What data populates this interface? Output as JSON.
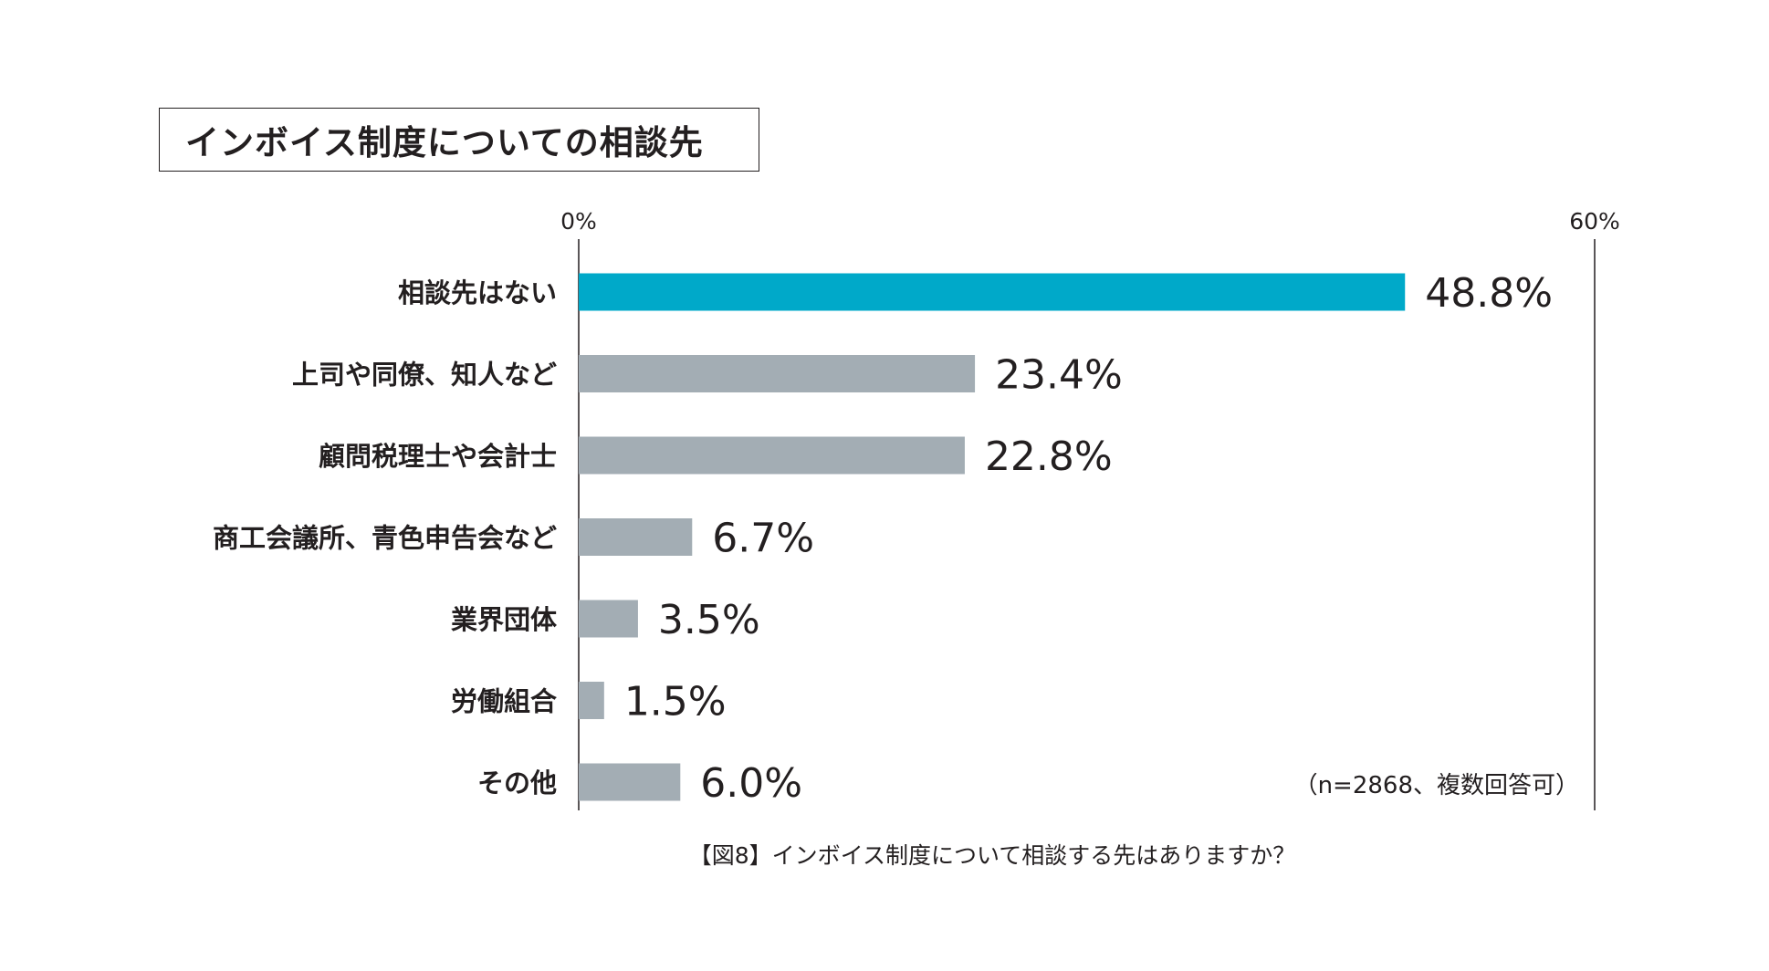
{
  "chart_data": {
    "type": "bar",
    "orientation": "horizontal",
    "title": "インボイス制度についての相談先",
    "categories": [
      "相談先はない",
      "上司や同僚、知人など",
      "顧問税理士や会計士",
      "商工会議所、青色申告会など",
      "業界団体",
      "労働組合",
      "その他"
    ],
    "values": [
      48.8,
      23.4,
      22.8,
      6.7,
      3.5,
      1.5,
      6.0
    ],
    "value_labels": [
      "48.8%",
      "23.4%",
      "22.8%",
      "6.7%",
      "3.5%",
      "1.5%",
      "6.0%"
    ],
    "xlim": [
      0,
      60
    ],
    "x_tick_labels": [
      "0%",
      "60%"
    ],
    "highlight_index": 0,
    "colors": {
      "highlight": "#00a9c9",
      "default": "#a3adb4",
      "axis": "#231f20"
    },
    "note": "（n=2868、複数回答可）",
    "caption": "【図8】インボイス制度について相談する先はありますか？"
  }
}
